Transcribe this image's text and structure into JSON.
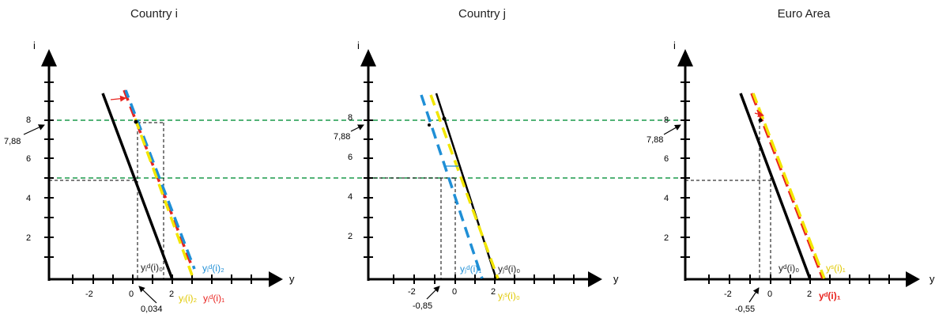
{
  "colors": {
    "axis": "#000000",
    "demand": "#000000",
    "blue": "#1f8fd6",
    "yellow": "#f2e600",
    "red": "#e8231e",
    "green": "#1a9a4a"
  },
  "axes": {
    "y_axis_label": "i",
    "x_axis_label": "y",
    "y_ticks": [
      "2",
      "4",
      "6",
      "8"
    ],
    "x_ticks": [
      "-2",
      "0",
      "2"
    ]
  },
  "reference_rates": {
    "high": "7,88",
    "low": "5"
  },
  "panels": [
    {
      "title": "Country i",
      "shift_label": "0,034",
      "curve_labels": [
        {
          "text": "yᵢᵈ(i)₀",
          "color": "black"
        },
        {
          "text": "yᵢᵈ(i)₂",
          "color": "blue"
        },
        {
          "text": "yᵢ(i)₂",
          "color": "yellow"
        },
        {
          "text": "yᵢᵈ(i)₁",
          "color": "red"
        }
      ]
    },
    {
      "title": "Country j",
      "shift_label": "-0,85",
      "curve_labels": [
        {
          "text": "yⱼᵈ(i)₁",
          "color": "blue"
        },
        {
          "text": "yⱼᵈ(i)₀",
          "color": "black"
        },
        {
          "text": "yⱼˢ(i)₀",
          "color": "yellow"
        }
      ]
    },
    {
      "title": "Euro Area",
      "shift_label": "-0,55",
      "curve_labels": [
        {
          "text": "yᵈ(i)₀",
          "color": "black"
        },
        {
          "text": "yˢ(i)₁",
          "color": "yellow"
        },
        {
          "text": "yᵈ(i)₁",
          "color": "red"
        }
      ]
    }
  ]
}
